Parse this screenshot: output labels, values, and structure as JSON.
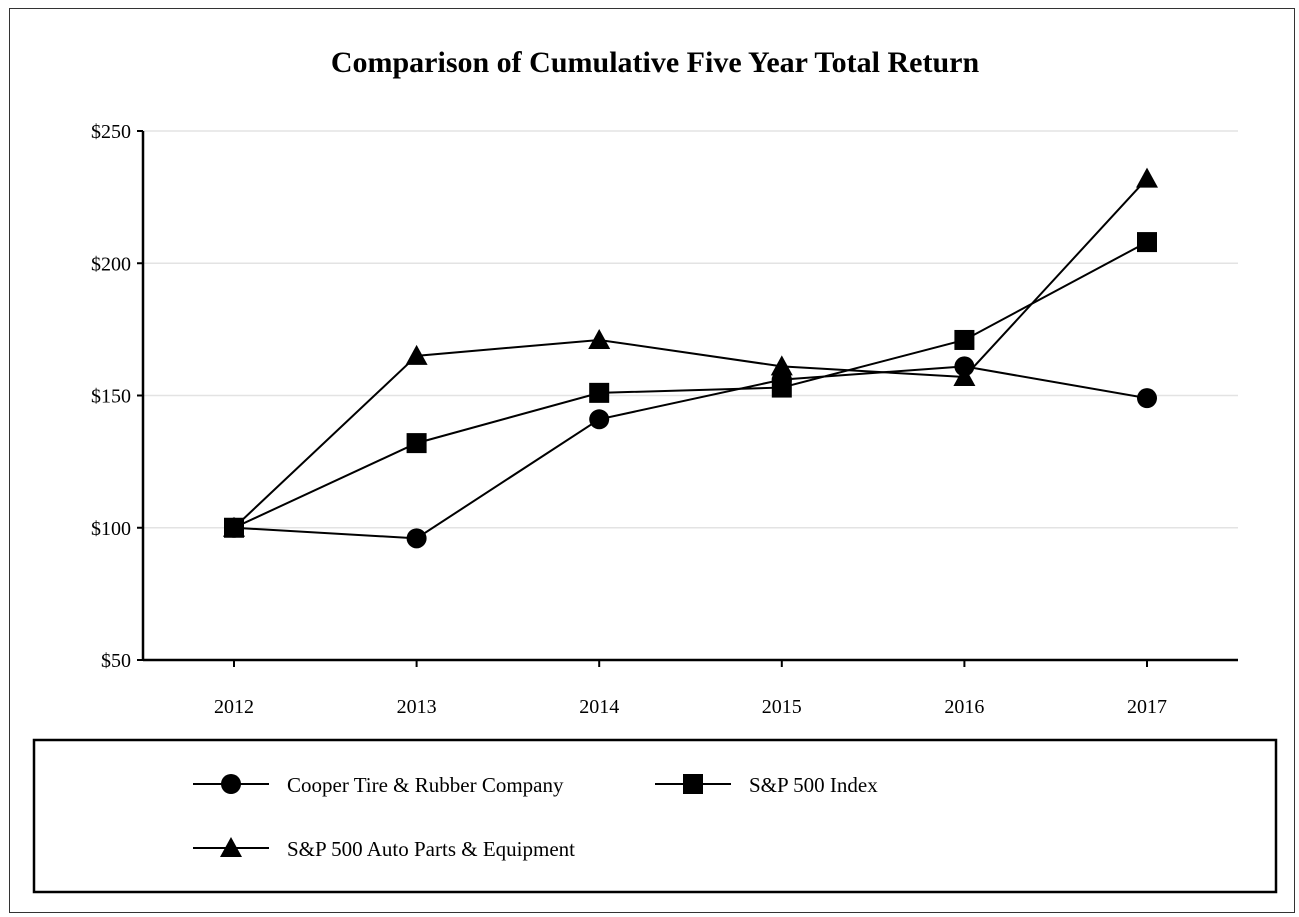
{
  "chart_data": {
    "type": "line",
    "title": "Comparison of Cumulative Five Year Total Return",
    "xlabel": "",
    "ylabel": "",
    "x": [
      "2012",
      "2013",
      "2014",
      "2015",
      "2016",
      "2017"
    ],
    "ylim": [
      50,
      250
    ],
    "yticks": [
      50,
      100,
      150,
      200,
      250
    ],
    "ytick_labels": [
      "$50",
      "$100",
      "$150",
      "$200",
      "$250"
    ],
    "grid": "horizontal",
    "legend_position": "bottom",
    "series": [
      {
        "name": "Cooper Tire & Rubber Company",
        "marker": "circle",
        "color": "#000000",
        "values": [
          100,
          96,
          141,
          156,
          161,
          149
        ]
      },
      {
        "name": "S&P 500 Index",
        "marker": "square",
        "color": "#000000",
        "values": [
          100,
          132,
          151,
          153,
          171,
          208
        ]
      },
      {
        "name": "S&P 500 Auto Parts & Equipment",
        "marker": "triangle",
        "color": "#000000",
        "values": [
          100,
          165,
          171,
          161,
          157,
          232
        ]
      }
    ]
  }
}
